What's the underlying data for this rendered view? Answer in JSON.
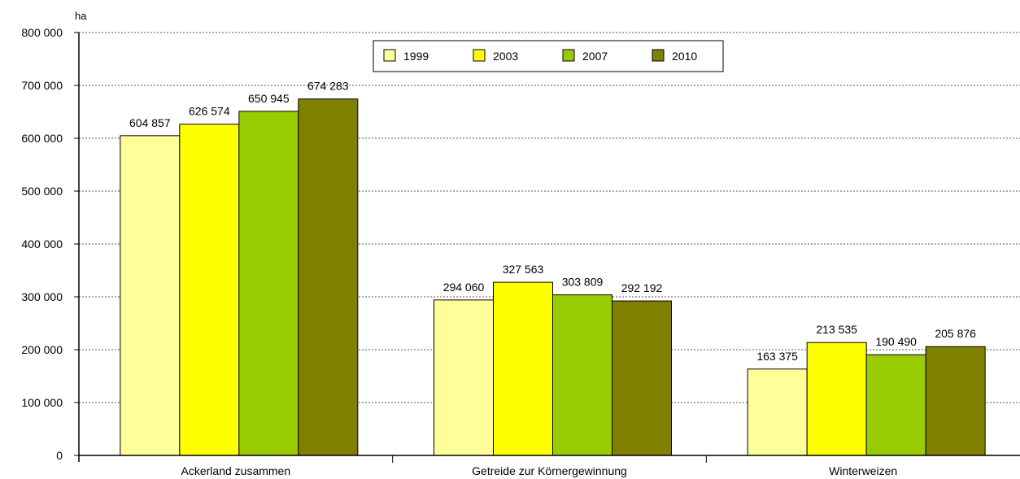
{
  "chart_data": {
    "type": "bar",
    "ylabel": "ha",
    "xlabel": "",
    "ylim": [
      0,
      800000
    ],
    "yticks": [
      0,
      100000,
      200000,
      300000,
      400000,
      500000,
      600000,
      700000,
      800000
    ],
    "ytick_labels": [
      "0",
      "100 000",
      "200 000",
      "300 000",
      "400 000",
      "500 000",
      "600 000",
      "700 000",
      "800 000"
    ],
    "grid": "dashed-horizontal",
    "legend_position": "top",
    "categories": [
      "Ackerland zusammen",
      "Getreide zur Körnergewinnung",
      "Winterweizen"
    ],
    "series": [
      {
        "name": "1999",
        "color": "#ffff99",
        "values": [
          604857,
          294060,
          163375
        ],
        "labels": [
          "604 857",
          "294 060",
          "163 375"
        ]
      },
      {
        "name": "2003",
        "color": "#ffff00",
        "values": [
          626574,
          327563,
          213535
        ],
        "labels": [
          "626 574",
          "327 563",
          "213 535"
        ]
      },
      {
        "name": "2007",
        "color": "#99cc00",
        "values": [
          650945,
          303809,
          190490
        ],
        "labels": [
          "650 945",
          "303 809",
          "190 490"
        ]
      },
      {
        "name": "2010",
        "color": "#808000",
        "values": [
          674283,
          292192,
          205876
        ],
        "labels": [
          "674 283",
          "292 192",
          "205 876"
        ]
      }
    ]
  }
}
